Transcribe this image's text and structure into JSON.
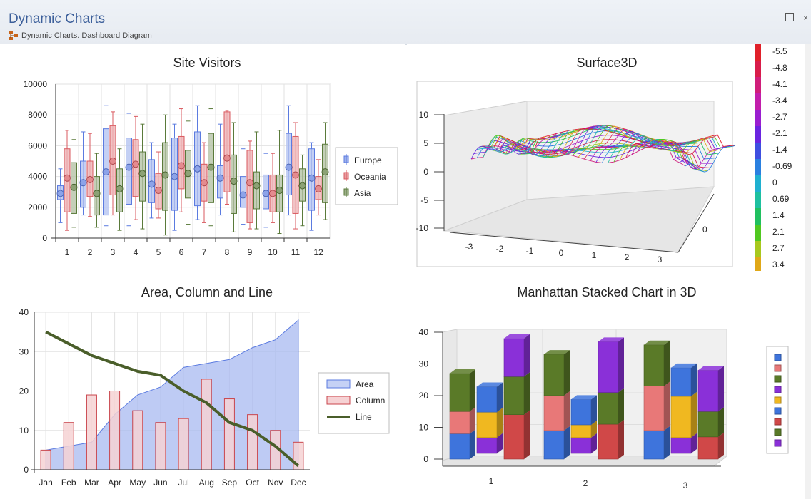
{
  "window": {
    "title": "Dynamic Charts",
    "subtitle": "Dynamic Charts.  Dashboard Diagram",
    "restore_icon": "restore-icon",
    "close_icon": "close-icon"
  },
  "charts": {
    "site_visitors_title": "Site Visitors",
    "surface_title": "Surface3D",
    "acl_title": "Area, Column and Line",
    "manhattan_title": "Manhattan Stacked Chart in 3D"
  },
  "chart_data": [
    {
      "type": "box",
      "title": "Site Visitors",
      "categories": [
        "1",
        "2",
        "3",
        "4",
        "5",
        "6",
        "7",
        "8",
        "9",
        "10",
        "11",
        "12"
      ],
      "ylim": [
        0,
        10000
      ],
      "yticks": [
        0,
        2000,
        4000,
        6000,
        8000,
        10000
      ],
      "legend": "right",
      "grid": true,
      "series": [
        {
          "name": "Europe",
          "color": "#5b7be0",
          "mean": [
            2900,
            3600,
            4300,
            4600,
            3500,
            4000,
            4500,
            3900,
            2800,
            2900,
            4600,
            3900
          ],
          "q1": [
            2500,
            2000,
            1500,
            2200,
            2300,
            1800,
            2100,
            2600,
            2000,
            1900,
            2800,
            1800
          ],
          "q3": [
            3400,
            5000,
            7100,
            6500,
            5100,
            6500,
            6900,
            4700,
            4000,
            4100,
            6800,
            5800
          ],
          "lo": [
            1000,
            1500,
            800,
            800,
            1300,
            500,
            1200,
            1500,
            900,
            700,
            1500,
            500
          ],
          "hi": [
            4500,
            6900,
            8600,
            8100,
            6200,
            7400,
            8600,
            7400,
            5800,
            5500,
            8600,
            6200
          ]
        },
        {
          "name": "Oceania",
          "color": "#d9595f",
          "mean": [
            3900,
            3800,
            5000,
            4800,
            3100,
            4700,
            3600,
            5200,
            3600,
            2900,
            4100,
            3200
          ],
          "q1": [
            1700,
            2700,
            2800,
            2700,
            1900,
            3200,
            2400,
            3000,
            1000,
            1700,
            1600,
            2500
          ],
          "q3": [
            5800,
            5000,
            7300,
            6400,
            4200,
            6600,
            4800,
            8200,
            5700,
            4100,
            6600,
            4000
          ],
          "lo": [
            500,
            1400,
            1500,
            1200,
            1300,
            1700,
            1000,
            2200,
            600,
            1000,
            600,
            1500
          ],
          "hi": [
            7000,
            6800,
            8200,
            7900,
            5600,
            8400,
            6200,
            8300,
            6300,
            5500,
            7500,
            5100
          ]
        },
        {
          "name": "Asia",
          "color": "#5a7a3a",
          "mean": [
            3300,
            2900,
            3200,
            4200,
            4100,
            4200,
            4600,
            3700,
            3400,
            3100,
            3400,
            4300
          ],
          "q1": [
            1600,
            1500,
            1700,
            2400,
            1800,
            2600,
            2300,
            1600,
            1900,
            1700,
            2400,
            2300
          ],
          "q3": [
            4900,
            4000,
            4500,
            5600,
            6200,
            5700,
            6800,
            5400,
            4300,
            4100,
            4500,
            6100
          ],
          "lo": [
            700,
            700,
            500,
            600,
            200,
            900,
            800,
            400,
            600,
            300,
            800,
            1200
          ],
          "hi": [
            6400,
            5500,
            5800,
            7400,
            8000,
            7600,
            8400,
            7500,
            6900,
            7000,
            5400,
            7500
          ]
        }
      ]
    },
    {
      "type": "surface3d",
      "title": "Surface3D",
      "xlim": [
        -3,
        3
      ],
      "xticks": [
        "-3",
        "-2",
        "-1",
        "0",
        "1",
        "2",
        "3"
      ],
      "ylim": [
        -10,
        10
      ],
      "yticks": [
        "10",
        "5",
        "0",
        "-5",
        "-10"
      ],
      "zticks": [
        "0"
      ],
      "colorbar": [
        "-5.5",
        "-4.8",
        "-4.1",
        "-3.4",
        "-2.7",
        "-2.1",
        "-1.4",
        "-0.69",
        "0",
        "0.69",
        "1.4",
        "2.1",
        "2.7",
        "3.4"
      ],
      "colorbar_colors": [
        "#e0202a",
        "#d81c4a",
        "#d01e7a",
        "#c21eab",
        "#9a1ed0",
        "#6a24e0",
        "#3e4fe0",
        "#2a80e0",
        "#1fb0d0",
        "#1ec0a0",
        "#20c060",
        "#50c820",
        "#a8c81e",
        "#e0a818"
      ]
    },
    {
      "type": "area-column-line",
      "title": "Area, Column and Line",
      "categories": [
        "Jan",
        "Feb",
        "Mar",
        "Apr",
        "May",
        "Jun",
        "Jul",
        "Aug",
        "Sep",
        "Oct",
        "Nov",
        "Dec"
      ],
      "ylim": [
        0,
        40
      ],
      "yticks": [
        0,
        10,
        20,
        30,
        40
      ],
      "legend": "right",
      "grid": true,
      "series": [
        {
          "name": "Area",
          "type": "area",
          "color": "#6f8ee8",
          "values": [
            5,
            6,
            7,
            14,
            19,
            21,
            26,
            27,
            28,
            31,
            33,
            38
          ]
        },
        {
          "name": "Column",
          "type": "column",
          "color": "#d9595f",
          "values": [
            5,
            12,
            19,
            20,
            15,
            12,
            13,
            23,
            18,
            14,
            10,
            7
          ]
        },
        {
          "name": "Line",
          "type": "line",
          "color": "#4a5e2a",
          "values": [
            35,
            32,
            29,
            27,
            25,
            24,
            20,
            17,
            12,
            10,
            6,
            1
          ]
        }
      ]
    },
    {
      "type": "stacked-bar-3d",
      "title": "Manhattan Stacked Chart in 3D",
      "categories": [
        "1",
        "2",
        "3"
      ],
      "ylim": [
        0,
        40
      ],
      "yticks": [
        0,
        10,
        20,
        30,
        40
      ],
      "legend": "right",
      "stacks": [
        {
          "category": "1",
          "columns": [
            [
              {
                "v": 8,
                "c": "#3e74dc"
              },
              {
                "v": 7,
                "c": "#e87878"
              },
              {
                "v": 12,
                "c": "#5a7a28"
              }
            ],
            [
              {
                "v": 5,
                "c": "#8a30d8"
              },
              {
                "v": 8,
                "c": "#f0b820"
              },
              {
                "v": 8,
                "c": "#3e74dc"
              }
            ],
            [
              {
                "v": 14,
                "c": "#d04848"
              },
              {
                "v": 12,
                "c": "#5a7a28"
              },
              {
                "v": 12,
                "c": "#8a30d8"
              }
            ]
          ]
        },
        {
          "category": "2",
          "columns": [
            [
              {
                "v": 9,
                "c": "#3e74dc"
              },
              {
                "v": 11,
                "c": "#e87878"
              },
              {
                "v": 13,
                "c": "#5a7a28"
              }
            ],
            [
              {
                "v": 5,
                "c": "#8a30d8"
              },
              {
                "v": 4,
                "c": "#f0b820"
              },
              {
                "v": 8,
                "c": "#3e74dc"
              }
            ],
            [
              {
                "v": 11,
                "c": "#d04848"
              },
              {
                "v": 10,
                "c": "#5a7a28"
              },
              {
                "v": 16,
                "c": "#8a30d8"
              }
            ]
          ]
        },
        {
          "category": "3",
          "columns": [
            [
              {
                "v": 9,
                "c": "#3e74dc"
              },
              {
                "v": 14,
                "c": "#e87878"
              },
              {
                "v": 13,
                "c": "#5a7a28"
              }
            ],
            [
              {
                "v": 5,
                "c": "#8a30d8"
              },
              {
                "v": 13,
                "c": "#f0b820"
              },
              {
                "v": 9,
                "c": "#3e74dc"
              }
            ],
            [
              {
                "v": 7,
                "c": "#d04848"
              },
              {
                "v": 8,
                "c": "#5a7a28"
              },
              {
                "v": 13,
                "c": "#8a30d8"
              }
            ]
          ]
        }
      ],
      "legend_colors": [
        "#3e74dc",
        "#e87878",
        "#5a7a28",
        "#8a30d8",
        "#f0b820",
        "#3e74dc",
        "#d04848",
        "#5a7a28",
        "#8a30d8"
      ]
    }
  ]
}
